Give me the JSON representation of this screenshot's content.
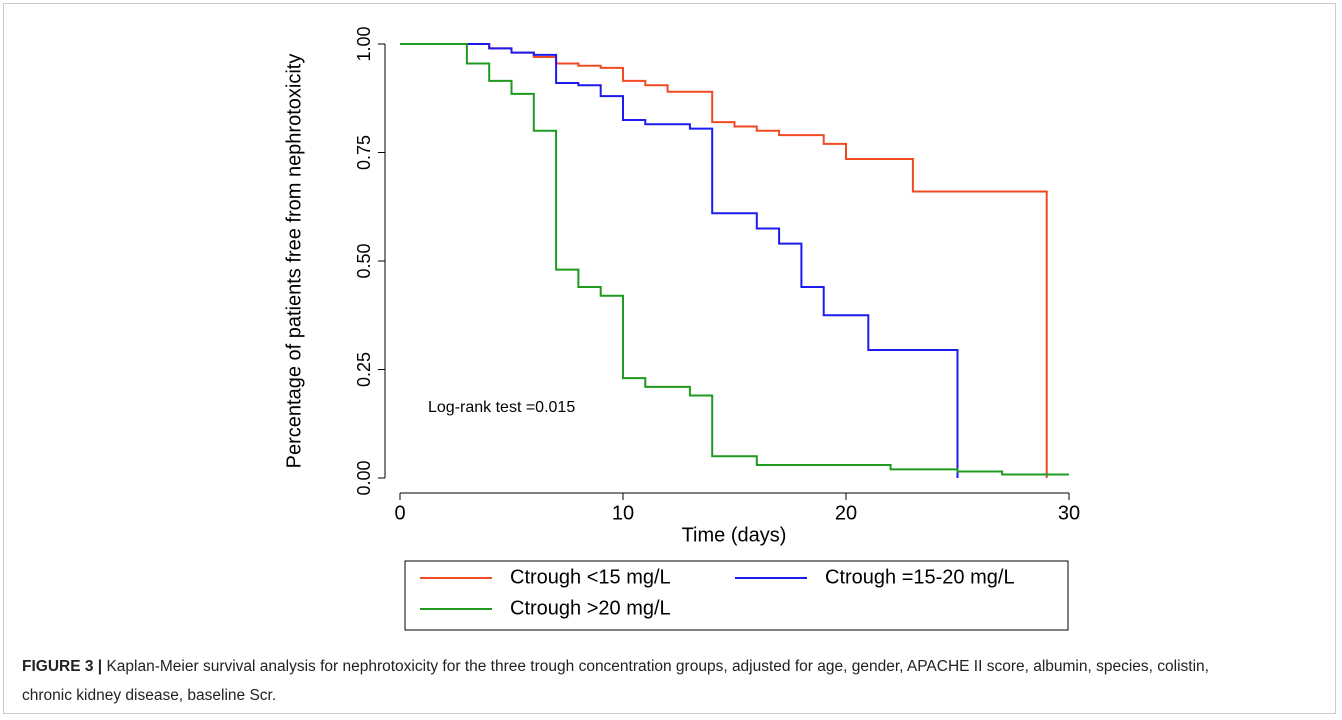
{
  "chart_data": {
    "type": "step",
    "y_label": "Percentage of patients free from nephrotoxicity",
    "x_label": "Time (days)",
    "annotation": "Log-rank test =0.015",
    "xlim": [
      0,
      30
    ],
    "xticks": [
      0,
      10,
      20,
      30
    ],
    "ylim": [
      0,
      1
    ],
    "yticks": [
      {
        "value": 0,
        "label": "0.00"
      },
      {
        "value": 0.25,
        "label": "0.25"
      },
      {
        "value": 0.5,
        "label": "0.50"
      },
      {
        "value": 0.75,
        "label": "0.75"
      },
      {
        "value": 1,
        "label": "1.00"
      }
    ],
    "series": [
      {
        "name": "Ctrough <15 mg/L",
        "color": "#f04a22",
        "x": [
          0,
          4,
          5,
          6,
          7,
          8,
          9,
          10,
          11,
          12,
          14,
          15,
          16,
          17,
          19,
          20,
          23,
          29
        ],
        "values": [
          1.0,
          0.99,
          0.98,
          0.97,
          0.955,
          0.95,
          0.945,
          0.915,
          0.905,
          0.89,
          0.82,
          0.81,
          0.8,
          0.79,
          0.77,
          0.735,
          0.66,
          0.0
        ]
      },
      {
        "name": "Ctrough =15-20 mg/L",
        "color": "#1c1cf0",
        "x": [
          0,
          4,
          5,
          6,
          7,
          8,
          9,
          10,
          11,
          13,
          14,
          16,
          17,
          18,
          19,
          21,
          25
        ],
        "values": [
          1.0,
          0.99,
          0.98,
          0.975,
          0.91,
          0.905,
          0.88,
          0.825,
          0.815,
          0.805,
          0.61,
          0.575,
          0.54,
          0.44,
          0.375,
          0.295,
          0.0
        ]
      },
      {
        "name": "Ctrough >20 mg/L",
        "color": "#1f9a1f",
        "x": [
          0,
          3,
          4,
          5,
          6,
          7,
          8,
          9,
          10,
          11,
          13,
          14,
          16,
          22,
          25,
          27,
          30
        ],
        "values": [
          1.0,
          0.955,
          0.915,
          0.885,
          0.8,
          0.48,
          0.44,
          0.42,
          0.23,
          0.21,
          0.19,
          0.05,
          0.03,
          0.02,
          0.015,
          0.008,
          0.008
        ]
      }
    ]
  },
  "caption": {
    "label": "FIGURE 3 |",
    "text": "Kaplan-Meier survival analysis for nephrotoxicity for the three trough concentration groups, adjusted for age, gender, APACHE II score, albumin, species, colistin, chronic kidney disease, baseline Scr."
  }
}
